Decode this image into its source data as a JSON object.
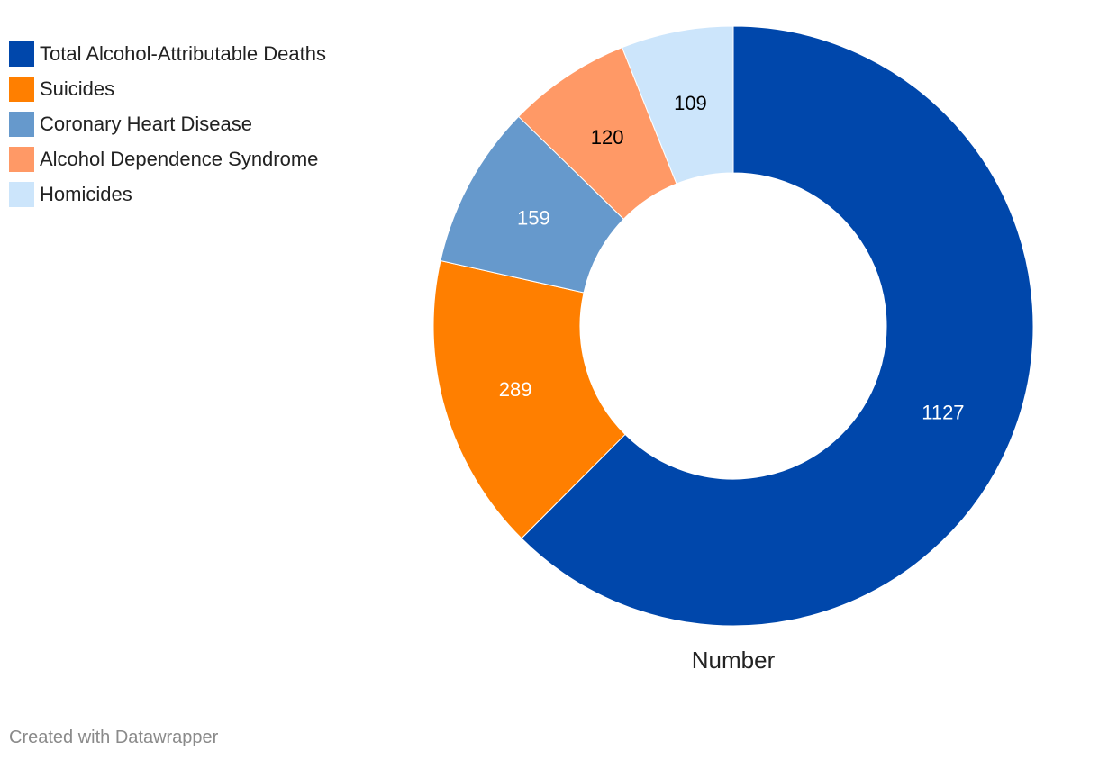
{
  "chart_data": {
    "type": "pie",
    "variant": "donut",
    "xlabel": "Number",
    "categories": [
      "Total Alcohol-Attributable Deaths",
      "Suicides",
      "Coronary Heart Disease",
      "Alcohol Dependence Syndrome",
      "Homicides"
    ],
    "values": [
      1127,
      289,
      159,
      120,
      109
    ],
    "colors": [
      "#0047ab",
      "#ff7f00",
      "#6699cc",
      "#ff9966",
      "#cce5fb"
    ],
    "label_colors": [
      "#ffffff",
      "#ffffff",
      "#ffffff",
      "#000000",
      "#000000"
    ],
    "legend_position": "top-left"
  },
  "legend": {
    "items": [
      {
        "label": "Total Alcohol-Attributable Deaths",
        "color": "#0047ab"
      },
      {
        "label": "Suicides",
        "color": "#ff7f00"
      },
      {
        "label": "Coronary Heart Disease",
        "color": "#6699cc"
      },
      {
        "label": "Alcohol Dependence Syndrome",
        "color": "#ff9966"
      },
      {
        "label": "Homicides",
        "color": "#cce5fb"
      }
    ]
  },
  "footer": {
    "credit": "Created with Datawrapper"
  }
}
